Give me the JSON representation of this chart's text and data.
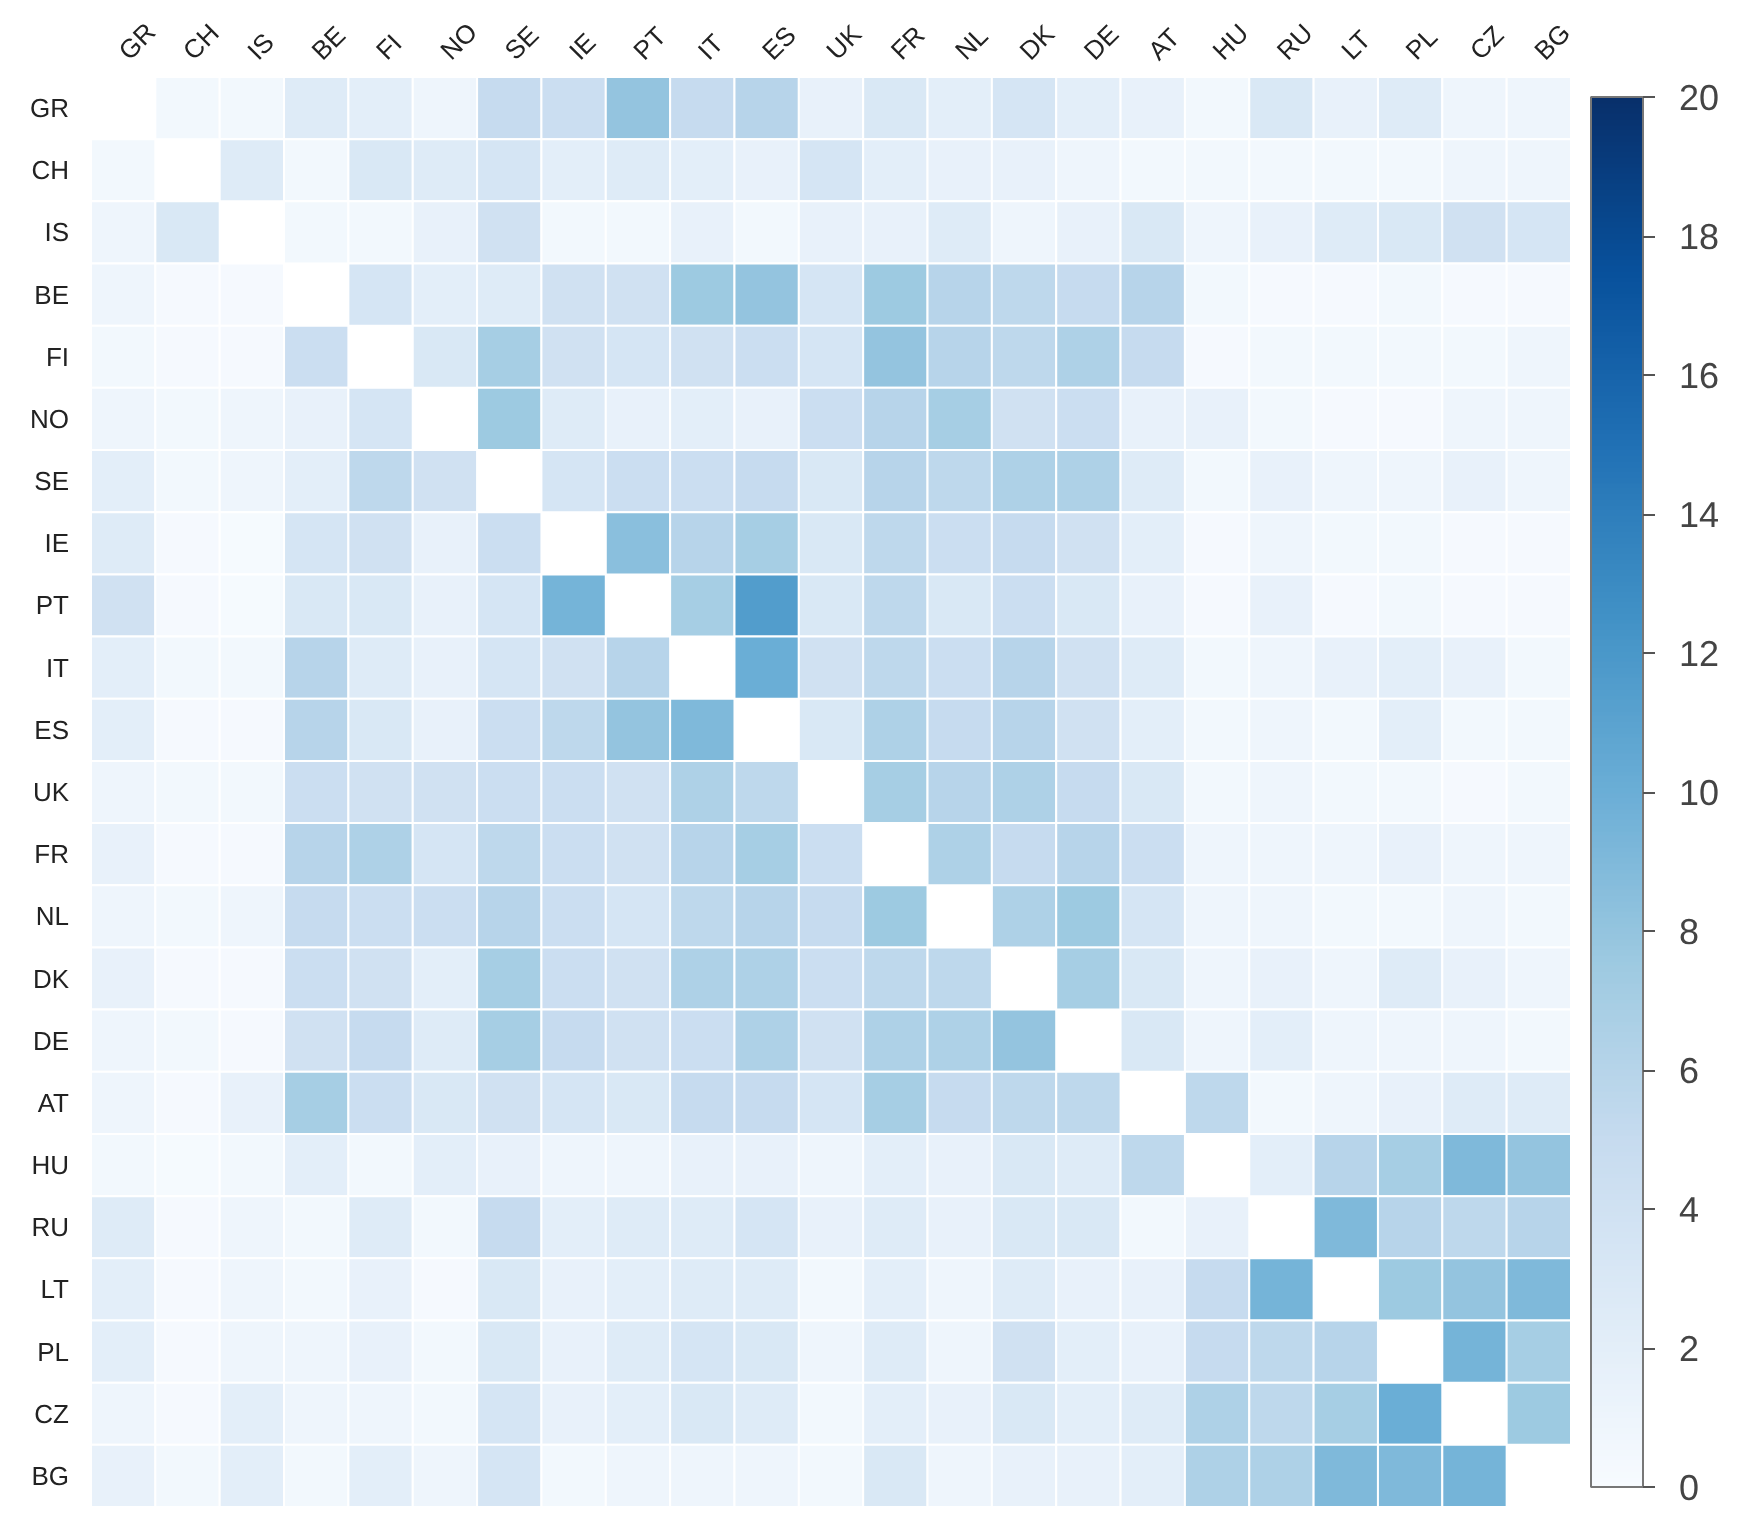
{
  "chart_data": {
    "type": "heatmap",
    "categories": [
      "GR",
      "CH",
      "IS",
      "BE",
      "FI",
      "NO",
      "SE",
      "IE",
      "PT",
      "IT",
      "ES",
      "UK",
      "FR",
      "NL",
      "DK",
      "DE",
      "AT",
      "HU",
      "RU",
      "LT",
      "PL",
      "CZ",
      "BG"
    ],
    "y_categories": [
      "GR",
      "CH",
      "IS",
      "BE",
      "FI",
      "NO",
      "SE",
      "IE",
      "PT",
      "IT",
      "ES",
      "UK",
      "FR",
      "NL",
      "DK",
      "DE",
      "AT",
      "HU",
      "RU",
      "LT",
      "PL",
      "CZ",
      "BG"
    ],
    "cells": [
      [
        null,
        0.5,
        0.5,
        2.5,
        2,
        1,
        5,
        4.5,
        8,
        5,
        6,
        1.5,
        3,
        2,
        3.5,
        2,
        1.5,
        0.5,
        3,
        1.5,
        2.5,
        1,
        1
      ],
      [
        0.5,
        null,
        2.5,
        0.5,
        3,
        2.5,
        3.5,
        2,
        2.5,
        2,
        1.5,
        3.5,
        2,
        1.5,
        1.5,
        1,
        0.5,
        0.5,
        0.5,
        0.5,
        0.5,
        1,
        1
      ],
      [
        1,
        3,
        null,
        0.5,
        0.5,
        1.5,
        4,
        0.5,
        0.5,
        1.5,
        0.5,
        1.5,
        1.5,
        2.5,
        1,
        1.5,
        3,
        1,
        1.5,
        2.5,
        3,
        4,
        3.5
      ],
      [
        1,
        0.3,
        0.3,
        null,
        3.5,
        2,
        2.5,
        4,
        4,
        7.5,
        8,
        3.5,
        7.5,
        6,
        5.5,
        5,
        6,
        0.5,
        0.3,
        0.3,
        0.5,
        0.3,
        0.3
      ],
      [
        0.5,
        0.3,
        0.3,
        4.5,
        null,
        3,
        7,
        4,
        3.5,
        4,
        4.5,
        3.5,
        8,
        6,
        5.5,
        6.5,
        5,
        0.3,
        0.5,
        0.5,
        0.5,
        0.5,
        1
      ],
      [
        1,
        0.5,
        1,
        1.5,
        3.5,
        null,
        7.5,
        2.5,
        1.5,
        2,
        1.5,
        4.5,
        6,
        7,
        4,
        4.5,
        1.5,
        1.5,
        0.5,
        0.3,
        0.3,
        1,
        1
      ],
      [
        2,
        0.5,
        1,
        2,
        5.5,
        4,
        null,
        3.5,
        4.5,
        4.5,
        5,
        3,
        6,
        5.5,
        6.5,
        6.5,
        2.5,
        0.5,
        1.5,
        1,
        1,
        1.5,
        1
      ],
      [
        2.5,
        0.3,
        0.2,
        3.5,
        4,
        1.5,
        4.5,
        null,
        8.5,
        6,
        7,
        3,
        5.5,
        4.5,
        5,
        4,
        2,
        0.3,
        1,
        0.5,
        0.5,
        0.3,
        0.3
      ],
      [
        4,
        0.3,
        0.2,
        3,
        3,
        1.5,
        3.5,
        9.5,
        null,
        7,
        11.5,
        3,
        5.5,
        3,
        4.5,
        3,
        1.5,
        0.3,
        1.5,
        0.3,
        0.5,
        0.3,
        0.3
      ],
      [
        2,
        0.5,
        0.5,
        6,
        2.5,
        1.5,
        3.5,
        4,
        6,
        null,
        10,
        4,
        5.5,
        4.5,
        6,
        4,
        2.5,
        0.5,
        1,
        1.5,
        2,
        1.5,
        0.5
      ],
      [
        2,
        0.3,
        0.3,
        6,
        3,
        1.5,
        4.5,
        5.5,
        8,
        9,
        null,
        3,
        6.5,
        5,
        6,
        4,
        2,
        0.5,
        1,
        0.5,
        2,
        0.5,
        0.5
      ],
      [
        1,
        0.5,
        0.5,
        4.5,
        4,
        4,
        4.5,
        4.5,
        4,
        6.5,
        5.5,
        null,
        7,
        6,
        6.5,
        5,
        3,
        0.5,
        1,
        0.5,
        0.5,
        0.3,
        0.5
      ],
      [
        1.5,
        0.3,
        0.3,
        6,
        6.5,
        3.5,
        5.5,
        4.5,
        4,
        6,
        7,
        4.5,
        null,
        6.5,
        5,
        6,
        4.5,
        1,
        1,
        1,
        1.5,
        1,
        1
      ],
      [
        1,
        0.5,
        1,
        5,
        4.5,
        4.5,
        6,
        4.5,
        3.5,
        5.5,
        6,
        5,
        7.5,
        null,
        6.5,
        7.5,
        3.5,
        1,
        1,
        0.5,
        0.5,
        1,
        0.5
      ],
      [
        1.5,
        0.3,
        0.3,
        4.5,
        4,
        2,
        7,
        4.5,
        4,
        6.5,
        6.5,
        4.5,
        5.5,
        5.5,
        null,
        7,
        3,
        1,
        1.5,
        1,
        2.5,
        1.5,
        1
      ],
      [
        1,
        0.5,
        0.3,
        4,
        5,
        2.5,
        7,
        5,
        4,
        4.5,
        6.5,
        4,
        6.5,
        6.5,
        8,
        null,
        3,
        1,
        2,
        1,
        1,
        1,
        0.5
      ],
      [
        1,
        0.3,
        1.5,
        7,
        4.5,
        3,
        4,
        3.5,
        3,
        5,
        5,
        3.5,
        7,
        5,
        5.5,
        5.5,
        null,
        5.5,
        0.5,
        1,
        1.5,
        2.5,
        2.5
      ],
      [
        0.5,
        0.2,
        0.5,
        2,
        0.5,
        2,
        1.5,
        1,
        1,
        1.5,
        1.5,
        1,
        2,
        1.5,
        3,
        2.5,
        5.5,
        null,
        2,
        6,
        7,
        9,
        8
      ],
      [
        2.5,
        0.3,
        1,
        0.5,
        2.5,
        0.5,
        5,
        2,
        2.5,
        2.5,
        3.5,
        1.5,
        2.5,
        1.5,
        3,
        3,
        0.5,
        1.5,
        null,
        9,
        6,
        5.5,
        6
      ],
      [
        2,
        0.3,
        1,
        0.5,
        1.5,
        0.3,
        3,
        1.5,
        2,
        2.5,
        2.5,
        0.5,
        2,
        1,
        2.5,
        1.5,
        1.5,
        5,
        9.5,
        null,
        7.5,
        8,
        9
      ],
      [
        2,
        0.3,
        1,
        1,
        1.5,
        0.5,
        3,
        1.5,
        2.5,
        3.5,
        3,
        1,
        2.5,
        1,
        4,
        2,
        1.5,
        5,
        5.5,
        6,
        null,
        9.5,
        7
      ],
      [
        1,
        0.3,
        2,
        1,
        1,
        0.5,
        3.5,
        1.5,
        2,
        3,
        2.5,
        0.5,
        2,
        1.5,
        3,
        2,
        2.5,
        6.5,
        5.5,
        7,
        10,
        null,
        7.5
      ],
      [
        1.5,
        0.5,
        2,
        0.5,
        2,
        1,
        3.5,
        0.5,
        1,
        1,
        1,
        0.5,
        3,
        1,
        1.5,
        1.5,
        2,
        6.5,
        6.5,
        9,
        9,
        9.5,
        null
      ]
    ],
    "clim": [
      0,
      20
    ],
    "cticks": [
      0,
      2,
      4,
      6,
      8,
      10,
      12,
      14,
      16,
      18,
      20
    ]
  }
}
